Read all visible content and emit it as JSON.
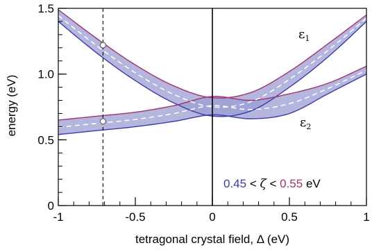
{
  "chart_data": {
    "type": "line",
    "xlabel": "tetragonal crystal field, Δ (eV)",
    "ylabel": "energy (eV)",
    "xlim": [
      -1,
      1
    ],
    "ylim": [
      0,
      1.5
    ],
    "x_ticks": [
      -1,
      -0.5,
      0,
      0.5,
      1
    ],
    "x_tick_labels": [
      "-1",
      "-0.5",
      "0",
      "0.5",
      "1"
    ],
    "y_ticks": [
      0,
      0.5,
      1.0,
      1.5
    ],
    "y_tick_labels": [
      "0",
      "0.5",
      "1.0",
      "1.5"
    ],
    "grid": false,
    "colors": {
      "band_fill": "#9b9ed3",
      "lower_edge": "#3b3ba8",
      "upper_edge": "#a0336e",
      "center_line": "#ffffff",
      "zeta_low": "#3b3ba8",
      "zeta_high": "#a0336e"
    },
    "series": [
      {
        "label": "ε1",
        "x": [
          -1,
          -0.75,
          -0.5,
          -0.25,
          0,
          0.25,
          0.5,
          0.75,
          1
        ],
        "lower": [
          1.4,
          1.16,
          0.95,
          0.78,
          0.68,
          0.72,
          0.9,
          1.13,
          1.4
        ],
        "upper": [
          1.49,
          1.27,
          1.07,
          0.91,
          0.82,
          0.86,
          1.02,
          1.23,
          1.45
        ]
      },
      {
        "label": "ε2",
        "x": [
          -1,
          -0.75,
          -0.5,
          -0.25,
          0,
          0.25,
          0.5,
          0.75,
          1
        ],
        "lower": [
          0.54,
          0.57,
          0.6,
          0.64,
          0.69,
          0.66,
          0.7,
          0.85,
          1.0
        ],
        "upper": [
          0.65,
          0.68,
          0.71,
          0.76,
          0.83,
          0.8,
          0.85,
          0.93,
          1.06
        ]
      }
    ],
    "reference_lines": [
      {
        "axis": "x",
        "value": -0.71,
        "style": "dashed"
      },
      {
        "axis": "x",
        "value": 0,
        "style": "solid"
      }
    ],
    "markers": [
      {
        "x": -0.71,
        "y": 1.22
      },
      {
        "x": -0.71,
        "y": 0.64
      }
    ],
    "annotation": {
      "zeta_low": "0.45",
      "lt1": "<",
      "zeta": "ζ",
      "lt2": "<",
      "zeta_high": "0.55",
      "unit": "eV"
    },
    "band_labels": {
      "e1_main": "ε",
      "e1_sub": "1",
      "e2_main": "ε",
      "e2_sub": "2"
    }
  }
}
